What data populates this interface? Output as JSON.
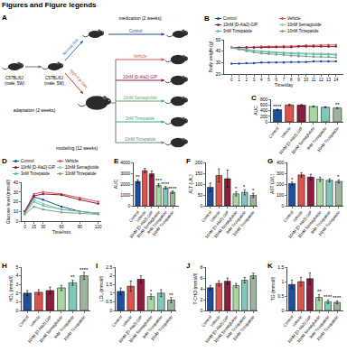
{
  "header": {
    "title": "Figures and Figure legends"
  },
  "diagram": {
    "title": "A",
    "mice": [
      {
        "lines": [
          "C57BL/6J",
          "(male, 5W)"
        ]
      },
      {
        "lines": [
          "C57BL/6J",
          "(male, 5W)"
        ]
      }
    ],
    "stages": [
      "adaptation (2 weeks)",
      "modeling (12 weeks)",
      "medication (2 weeks)"
    ],
    "diets": [
      {
        "label": "Normal diet",
        "color": "#2e6fbf"
      },
      {
        "label": "High-Fat Diet",
        "color": "#c0392b"
      }
    ],
    "normal_groups": [
      {
        "label": "Control",
        "color": "#1f4e9c"
      }
    ],
    "hfd_groups": [
      {
        "label": "Vehicle",
        "color": "#d9534f"
      },
      {
        "label": "10nM [D-Ala2]-GIP",
        "color": "#8b1e3f"
      },
      {
        "label": "10nM Semaglutide",
        "color": "#5fae6e"
      },
      {
        "label": "3nM Tirzepatide",
        "color": "#3f9f92"
      },
      {
        "label": "10nM Tirzepatide",
        "color": "#6f8f7a"
      }
    ]
  },
  "chart_data": [
    {
      "type": "line",
      "title": "B",
      "x": [
        0,
        1,
        2,
        3,
        4,
        5,
        6,
        7,
        8,
        9,
        10,
        11,
        12,
        13,
        14
      ],
      "x_label": "Time/day",
      "y_label": "Body weight (g)",
      "xlim": [
        -1,
        15
      ],
      "xticks": [
        0,
        1,
        2,
        3,
        4,
        5,
        6,
        7,
        8,
        9,
        10,
        11,
        12,
        13,
        14
      ],
      "ylim": [
        20,
        50
      ],
      "yticks": [
        20,
        30,
        40,
        50
      ],
      "grid": false,
      "legend": "top",
      "marker": "circle",
      "series": [
        {
          "name": "Control",
          "color": "#1f4e9c",
          "values": [
            29,
            29,
            29.5,
            29.5,
            30,
            30,
            30,
            30,
            30.5,
            30.5,
            30.5,
            31,
            31,
            31,
            31
          ]
        },
        {
          "name": "Vehicle",
          "color": "#d9534f",
          "values": [
            43,
            43,
            43.5,
            43.5,
            44,
            44,
            44,
            44.5,
            44.5,
            44.5,
            45,
            45,
            45,
            45.5,
            45.5
          ]
        },
        {
          "name": "10nM [D-Ala2]-GIP",
          "color": "#8b1e3f",
          "values": [
            43,
            43,
            43,
            43,
            43,
            43.5,
            43.5,
            43.5,
            43.5,
            44,
            44,
            44,
            44,
            44,
            44
          ]
        },
        {
          "name": "10nM Semaglutide",
          "color": "#8fd19e",
          "values": [
            43,
            42,
            41,
            40.5,
            40,
            39.5,
            39,
            39,
            38.5,
            38.5,
            38,
            38,
            38,
            37.5,
            37.5
          ]
        },
        {
          "name": "3nM Tirzepatide",
          "color": "#5bbcb0",
          "values": [
            43,
            42,
            41,
            40,
            39.5,
            39,
            38.5,
            38,
            38,
            37.5,
            37.5,
            37,
            37,
            37,
            36.5
          ]
        },
        {
          "name": "10nM Tirzepatide",
          "color": "#7f9f8a",
          "values": [
            43,
            41.5,
            40,
            39,
            38,
            37.5,
            37,
            36.5,
            36,
            35.5,
            35.5,
            35,
            35,
            35,
            34.5
          ]
        }
      ]
    },
    {
      "type": "bar",
      "title": "C",
      "categories": [
        "Control",
        "Vehicle",
        "10nM [D-Ala2]-GIP",
        "10nM Semaglutide",
        "3nM Tirzepatide",
        "10nM Tirzepatide"
      ],
      "values": [
        430,
        600,
        590,
        545,
        520,
        490
      ],
      "errors": [
        20,
        25,
        25,
        20,
        20,
        18
      ],
      "annotations": [
        "****",
        null,
        null,
        null,
        null,
        "**"
      ],
      "colors": [
        "#1f4e9c",
        "#d9534f",
        "#8b1e3f",
        "#a8d5a2",
        "#7fc8b8",
        "#9bb59b"
      ],
      "y_label": "AUC",
      "ylim": [
        0,
        800
      ],
      "yticks": [
        0,
        200,
        400,
        600,
        800
      ],
      "grid": false
    },
    {
      "type": "line",
      "title": "D",
      "x": [
        0,
        15,
        30,
        60,
        90,
        120
      ],
      "x_label": "Time/min",
      "y_label": "Glucose level (mmol/l)",
      "xlim": [
        -5,
        125
      ],
      "xticks": [
        0,
        15,
        30,
        60,
        90,
        120
      ],
      "ylim": [
        0,
        40
      ],
      "yticks": [
        0,
        10,
        20,
        30,
        40
      ],
      "grid": false,
      "legend": "top",
      "marker": "circle",
      "series": [
        {
          "name": "Control",
          "color": "#1f4e9c",
          "values": [
            8,
            25,
            22,
            15,
            10,
            8
          ]
        },
        {
          "name": "Vehicle",
          "color": "#d9534f",
          "values": [
            10,
            28,
            30,
            28,
            24,
            20
          ]
        },
        {
          "name": "10nM [D-Ala2]-GIP",
          "color": "#8b1e3f",
          "values": [
            10,
            26,
            28,
            27,
            22,
            18
          ]
        },
        {
          "name": "10nM Semaglutide",
          "color": "#8fd19e",
          "values": [
            8,
            22,
            18,
            12,
            10,
            8
          ]
        },
        {
          "name": "3nM Tirzepatide",
          "color": "#5bbcb0",
          "values": [
            8,
            20,
            16,
            12,
            10,
            8
          ]
        },
        {
          "name": "10nM Tirzepatide",
          "color": "#7f9f8a",
          "values": [
            7,
            15,
            12,
            9,
            8,
            7
          ]
        }
      ]
    },
    {
      "type": "bar",
      "title": "E",
      "categories": [
        "Control",
        "Vehicle",
        "10nM [D-Ala2]-GIP",
        "10nM Semaglutide",
        "3nM Tirzepatide",
        "10nM Tirzepatide"
      ],
      "values": [
        2250,
        3250,
        2950,
        1900,
        1650,
        1250
      ],
      "errors": [
        150,
        200,
        250,
        150,
        120,
        120
      ],
      "annotations": [
        "**",
        null,
        null,
        "***",
        "****",
        "****"
      ],
      "colors": [
        "#1f4e9c",
        "#d9534f",
        "#8b1e3f",
        "#a8d5a2",
        "#7fc8b8",
        "#9bb59b"
      ],
      "y_label": "AUC",
      "ylim": [
        0,
        4000
      ],
      "yticks": [
        0,
        1000,
        2000,
        3000,
        4000
      ],
      "grid": false
    },
    {
      "type": "bar",
      "title": "F",
      "categories": [
        "Control",
        "Vehicle",
        "10nM [D-Ala2]-GIP",
        "10nM Semaglutide",
        "3nM Tirzepatide",
        "10nM Tirzepatide"
      ],
      "values": [
        85,
        140,
        125,
        55,
        62,
        48
      ],
      "errors": [
        20,
        30,
        40,
        10,
        12,
        10
      ],
      "annotations": [
        null,
        null,
        null,
        "*",
        "*",
        "*"
      ],
      "colors": [
        "#1f4e9c",
        "#d9534f",
        "#8b1e3f",
        "#a8d5a2",
        "#7fc8b8",
        "#9bb59b"
      ],
      "y_label": "ALT (U/L)",
      "ylim": [
        0,
        200
      ],
      "yticks": [
        0,
        50,
        100,
        150,
        200
      ],
      "grid": false
    },
    {
      "type": "bar",
      "title": "G",
      "categories": [
        "Control",
        "Vehicle",
        "10nM [D-Ala2]-GIP",
        "10nM Semaglutide",
        "3nM Tirzepatide",
        "10nM Tirzepatide"
      ],
      "values": [
        205,
        285,
        265,
        245,
        235,
        225
      ],
      "errors": [
        15,
        20,
        25,
        20,
        15,
        15
      ],
      "annotations": [
        "*",
        null,
        null,
        null,
        null,
        "*"
      ],
      "colors": [
        "#1f4e9c",
        "#d9534f",
        "#8b1e3f",
        "#a8d5a2",
        "#7fc8b8",
        "#9bb59b"
      ],
      "y_label": "AST (U/L)",
      "ylim": [
        0,
        400
      ],
      "yticks": [
        0,
        100,
        200,
        300,
        400
      ],
      "grid": false
    },
    {
      "type": "bar",
      "title": "H",
      "categories": [
        "Control",
        "Vehicle",
        "10nM [D-Ala2]-GIP",
        "10nM Semaglutide",
        "3nM Tirzepatide",
        "10nM Tirzepatide"
      ],
      "values": [
        2.0,
        2.1,
        2.3,
        2.6,
        3.2,
        4.0
      ],
      "errors": [
        0.3,
        0.3,
        0.4,
        0.3,
        0.3,
        0.4
      ],
      "annotations": [
        null,
        null,
        null,
        null,
        "**",
        "****"
      ],
      "colors": [
        "#1f4e9c",
        "#d9534f",
        "#8b1e3f",
        "#a8d5a2",
        "#7fc8b8",
        "#9bb59b"
      ],
      "y_label": "HDL (mmol/l)",
      "ylim": [
        0,
        5
      ],
      "yticks": [
        0,
        1,
        2,
        3,
        4,
        5
      ],
      "grid": false
    },
    {
      "type": "bar",
      "title": "I",
      "categories": [
        "Control",
        "Vehicle",
        "10nM [D-Ala2]-GIP",
        "10nM Semaglutide",
        "3nM Tirzepatide",
        "10nM Tirzepatide"
      ],
      "values": [
        1.1,
        1.4,
        1.8,
        0.8,
        1.0,
        0.6
      ],
      "errors": [
        0.2,
        0.3,
        0.2,
        0.15,
        0.2,
        0.15
      ],
      "annotations": [
        null,
        null,
        null,
        "*",
        null,
        "**"
      ],
      "colors": [
        "#1f4e9c",
        "#d9534f",
        "#8b1e3f",
        "#a8d5a2",
        "#7fc8b8",
        "#9bb59b"
      ],
      "y_label": "LDL (mmol/l)",
      "ylim": [
        0,
        2.5
      ],
      "yticks": [
        0,
        0.5,
        1,
        1.5,
        2,
        2.5
      ],
      "grid": false
    },
    {
      "type": "bar",
      "title": "J",
      "categories": [
        "Control",
        "Vehicle",
        "10nM [D-Ala2]-GIP",
        "10nM Semaglutide",
        "3nM Tirzepatide",
        "10nM Tirzepatide"
      ],
      "values": [
        4.2,
        5.0,
        5.4,
        4.6,
        5.6,
        6.4
      ],
      "errors": [
        0.4,
        0.5,
        0.6,
        0.4,
        0.5,
        0.5
      ],
      "colors": [
        "#1f4e9c",
        "#d9534f",
        "#8b1e3f",
        "#a8d5a2",
        "#7fc8b8",
        "#9bb59b"
      ],
      "y_label": "T-CHO (mmol/l)",
      "ylim": [
        0,
        8
      ],
      "yticks": [
        0,
        2,
        4,
        6,
        8
      ],
      "grid": false
    },
    {
      "type": "bar",
      "title": "K",
      "categories": [
        "Control",
        "Vehicle",
        "10nM [D-Ala2]-GIP",
        "10nM Semaglutide",
        "3nM Tirzepatide",
        "10nM Tirzepatide"
      ],
      "values": [
        0.9,
        1.0,
        1.1,
        0.45,
        0.3,
        0.28
      ],
      "errors": [
        0.15,
        0.15,
        0.2,
        0.1,
        0.06,
        0.05
      ],
      "annotations": [
        null,
        null,
        null,
        "**",
        "****",
        "****"
      ],
      "colors": [
        "#1f4e9c",
        "#d9534f",
        "#8b1e3f",
        "#a8d5a2",
        "#7fc8b8",
        "#9bb59b"
      ],
      "y_label": "TG (mmol/l)",
      "ylim": [
        0,
        1.5
      ],
      "yticks": [
        0,
        0.5,
        1,
        1.5
      ],
      "grid": false
    }
  ]
}
